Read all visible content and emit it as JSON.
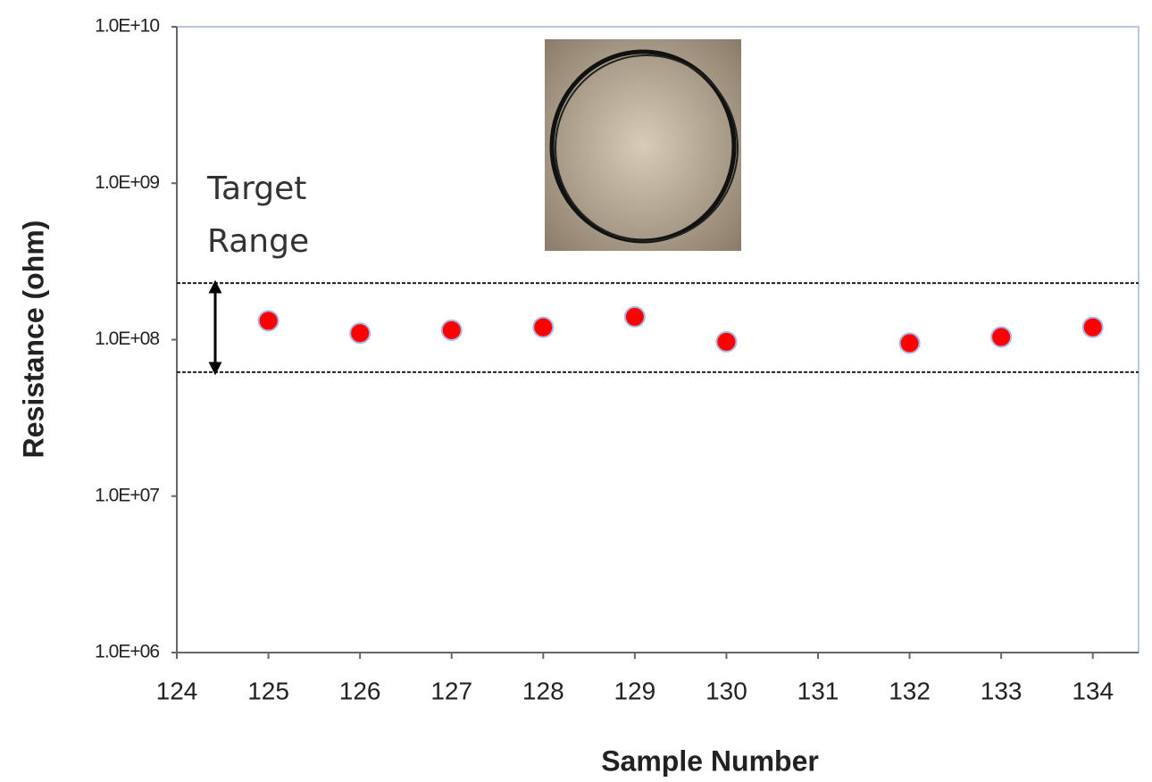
{
  "chart_data": {
    "type": "scatter",
    "x_label": "Sample Number",
    "y_label": "Resistance (ohm)",
    "annotation_lines": [
      "Target",
      "Range"
    ],
    "x": [
      125,
      126,
      127,
      128,
      129,
      130,
      132,
      133,
      134
    ],
    "series": [
      {
        "color": "#ff0000",
        "values": [
          132000000,
          110000000,
          115000000,
          120000000,
          140000000,
          97000000,
          95000000,
          104000000,
          120000000
        ]
      }
    ],
    "target_range": [
      62000000,
      230000000
    ],
    "xlim": [
      124,
      134.5
    ],
    "xticks": [
      124,
      125,
      126,
      127,
      128,
      129,
      130,
      131,
      132,
      133,
      134
    ],
    "ylim": [
      1000000,
      10000000000
    ],
    "yticks": [
      {
        "value": 1000000,
        "label": "1.0E+06"
      },
      {
        "value": 10000000,
        "label": "1.0E+07"
      },
      {
        "value": 100000000,
        "label": "1.0E+08"
      },
      {
        "value": 1000000000,
        "label": "1.0E+09"
      },
      {
        "value": 10000000000,
        "label": "1.0E+10"
      }
    ],
    "log_y": true,
    "grid": false
  }
}
